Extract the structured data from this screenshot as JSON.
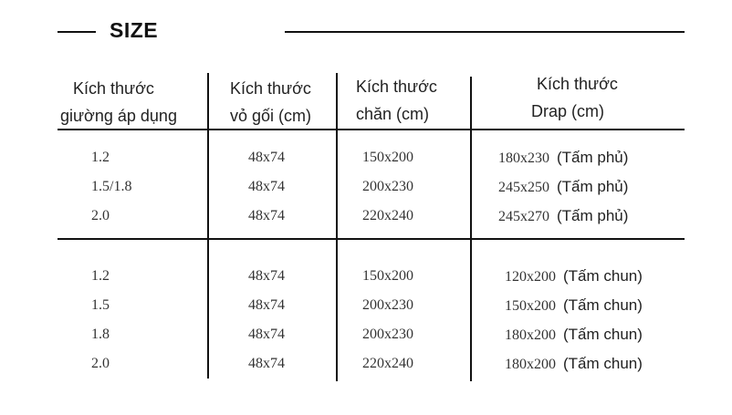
{
  "title": "SIZE",
  "headers": [
    {
      "line1": "Kích thước",
      "line2": "giường áp dụng"
    },
    {
      "line1": "Kích thước",
      "line2": "vỏ gối (cm)"
    },
    {
      "line1": "Kích thước",
      "line2": "chăn (cm)"
    },
    {
      "line1": "Kích thước",
      "line2": "Drap (cm)"
    }
  ],
  "groups": [
    {
      "rows": [
        {
          "bed": "1.2",
          "pillow": "48x74",
          "blanket": "150x200",
          "drap": "180x230",
          "drap_type": "(Tấm phủ)"
        },
        {
          "bed": "1.5/1.8",
          "pillow": "48x74",
          "blanket": "200x230",
          "drap": "245x250",
          "drap_type": "(Tấm phủ)"
        },
        {
          "bed": "2.0",
          "pillow": "48x74",
          "blanket": "220x240",
          "drap": "245x270",
          "drap_type": "(Tấm phủ)"
        }
      ]
    },
    {
      "rows": [
        {
          "bed": "1.2",
          "pillow": "48x74",
          "blanket": "150x200",
          "drap": "120x200",
          "drap_type": "(Tấm chun)"
        },
        {
          "bed": "1.5",
          "pillow": "48x74",
          "blanket": "200x230",
          "drap": "150x200",
          "drap_type": "(Tấm chun)"
        },
        {
          "bed": "1.8",
          "pillow": "48x74",
          "blanket": "200x230",
          "drap": "180x200",
          "drap_type": "(Tấm chun)"
        },
        {
          "bed": "2.0",
          "pillow": "48x74",
          "blanket": "220x240",
          "drap": "180x200",
          "drap_type": "(Tấm chun)"
        }
      ]
    }
  ]
}
